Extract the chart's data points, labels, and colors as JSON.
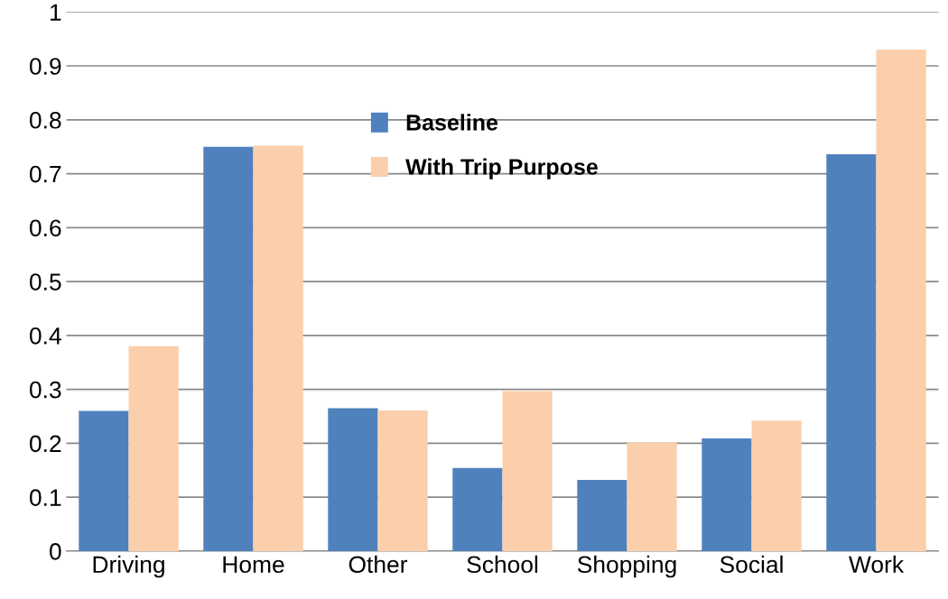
{
  "chart_data": {
    "type": "bar",
    "categories": [
      "Driving",
      "Home",
      "Other",
      "School",
      "Shopping",
      "Social",
      "Work"
    ],
    "series": [
      {
        "name": "Baseline",
        "color": "#4f81bd",
        "values": [
          0.26,
          0.75,
          0.265,
          0.154,
          0.132,
          0.209,
          0.736
        ]
      },
      {
        "name": "With Trip Purpose",
        "color": "#fbcfac",
        "values": [
          0.38,
          0.752,
          0.261,
          0.297,
          0.202,
          0.242,
          0.93
        ]
      }
    ],
    "ylim": [
      0,
      1
    ],
    "yticks": [
      0,
      {
        "value": 0.1,
        "label": "0.1"
      },
      {
        "value": 0.2,
        "label": "0.2"
      },
      {
        "value": 0.3,
        "label": "0.3"
      },
      {
        "value": 0.4,
        "label": "0.4"
      },
      {
        "value": 0.5,
        "label": "0.5"
      },
      {
        "value": 0.6,
        "label": "0.6"
      },
      {
        "value": 0.7,
        "label": "0.7"
      },
      {
        "value": 0.8,
        "label": "0.8"
      },
      {
        "value": 0.9,
        "label": "0.9"
      },
      1
    ],
    "grid": "y",
    "legend": "top"
  }
}
